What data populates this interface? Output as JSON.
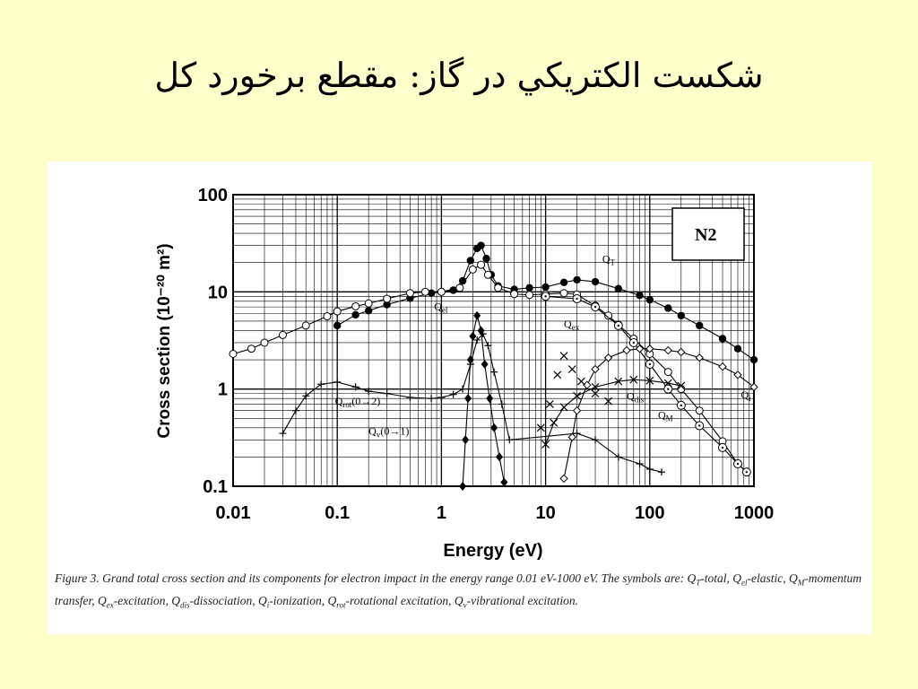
{
  "slide": {
    "title": "شکست الکتریکي در گاز: مقطع برخورد کل"
  },
  "figure": {
    "caption_segments": [
      {
        "t": "Figure 3. Grand total cross section and its components for electron impact in the energy range 0.01 eV-1000 eV. The symbols are: "
      },
      {
        "t": "Q"
      },
      {
        "sub": "T"
      },
      {
        "t": "-total, Q"
      },
      {
        "sub": "el"
      },
      {
        "t": "-elastic, Q"
      },
      {
        "sub": "M"
      },
      {
        "t": "-momentum transfer, Q"
      },
      {
        "sub": "ex"
      },
      {
        "t": "-excitation, Q"
      },
      {
        "sub": "dis"
      },
      {
        "t": "-dissociation, Q"
      },
      {
        "sub": "i"
      },
      {
        "t": "-ionization, Q"
      },
      {
        "sub": "rot"
      },
      {
        "t": "-rotational excitation, Q"
      },
      {
        "sub": "v"
      },
      {
        "t": "-vibrational excitation."
      }
    ]
  },
  "chart_data": {
    "type": "scatter",
    "gas_label": "N2",
    "xlabel": "Energy (eV)",
    "ylabel": "Cross section (10⁻²⁰ m²)",
    "xscale": "log",
    "yscale": "log",
    "xlim": [
      0.01,
      1000
    ],
    "ylim": [
      0.1,
      100
    ],
    "x_ticks": [
      "0.01",
      "0.1",
      "1",
      "10",
      "100",
      "1000"
    ],
    "y_ticks": [
      "0.1",
      "1",
      "10",
      "100"
    ],
    "grid": true,
    "series": [
      {
        "name": "QT",
        "marker": "filled-circle",
        "points": [
          [
            0.1,
            4.5
          ],
          [
            0.15,
            5.8
          ],
          [
            0.2,
            6.4
          ],
          [
            0.3,
            7.4
          ],
          [
            0.5,
            8.6
          ],
          [
            0.8,
            9.7
          ],
          [
            1,
            10
          ],
          [
            1.3,
            10.4
          ],
          [
            1.6,
            13
          ],
          [
            1.9,
            21
          ],
          [
            2.2,
            28
          ],
          [
            2.4,
            30
          ],
          [
            2.7,
            22
          ],
          [
            3,
            15
          ],
          [
            3.5,
            11.5
          ],
          [
            5,
            10.6
          ],
          [
            7,
            11
          ],
          [
            10,
            11.2
          ],
          [
            15,
            12.5
          ],
          [
            20,
            13.3
          ],
          [
            30,
            12.7
          ],
          [
            50,
            10.8
          ],
          [
            80,
            9.2
          ],
          [
            100,
            8.3
          ],
          [
            150,
            6.8
          ],
          [
            200,
            5.7
          ],
          [
            300,
            4.5
          ],
          [
            500,
            3.3
          ],
          [
            700,
            2.6
          ],
          [
            1000,
            2
          ]
        ]
      },
      {
        "name": "Qel",
        "marker": "open-circle",
        "points": [
          [
            0.01,
            2.3
          ],
          [
            0.015,
            2.6
          ],
          [
            0.02,
            3
          ],
          [
            0.03,
            3.6
          ],
          [
            0.05,
            4.5
          ],
          [
            0.08,
            5.6
          ],
          [
            0.1,
            6.3
          ],
          [
            0.15,
            7.1
          ],
          [
            0.2,
            7.6
          ],
          [
            0.3,
            8.5
          ],
          [
            0.5,
            9.7
          ],
          [
            0.7,
            10
          ],
          [
            1,
            10
          ],
          [
            1.5,
            11
          ],
          [
            2,
            17
          ],
          [
            2.4,
            19
          ],
          [
            2.8,
            15
          ],
          [
            3.5,
            11
          ],
          [
            5,
            9.5
          ],
          [
            7,
            9.3
          ],
          [
            10,
            9.5
          ],
          [
            15,
            9.7
          ],
          [
            20,
            9.4
          ],
          [
            30,
            7.2
          ],
          [
            40,
            5.7
          ],
          [
            50,
            4.6
          ],
          [
            70,
            3.3
          ],
          [
            100,
            2.3
          ],
          [
            150,
            1.5
          ],
          [
            200,
            1
          ],
          [
            300,
            0.6
          ],
          [
            500,
            0.29
          ],
          [
            700,
            0.17
          ],
          [
            850,
            0.14
          ]
        ]
      },
      {
        "name": "QM",
        "marker": "open-circle-dot",
        "points": [
          [
            10,
            9
          ],
          [
            20,
            8.5
          ],
          [
            30,
            7
          ],
          [
            50,
            4.5
          ],
          [
            70,
            3
          ],
          [
            100,
            1.8
          ],
          [
            150,
            1
          ],
          [
            200,
            0.68
          ],
          [
            300,
            0.42
          ],
          [
            500,
            0.25
          ],
          [
            700,
            0.17
          ],
          [
            850,
            0.14
          ]
        ]
      },
      {
        "name": "Qi",
        "marker": "diamond",
        "points": [
          [
            15,
            0.12
          ],
          [
            18,
            0.32
          ],
          [
            20,
            0.6
          ],
          [
            25,
            1.1
          ],
          [
            30,
            1.6
          ],
          [
            40,
            2.1
          ],
          [
            60,
            2.5
          ],
          [
            80,
            2.6
          ],
          [
            100,
            2.6
          ],
          [
            150,
            2.5
          ],
          [
            200,
            2.4
          ],
          [
            300,
            2.1
          ],
          [
            500,
            1.7
          ],
          [
            700,
            1.4
          ],
          [
            1000,
            1.05
          ]
        ]
      },
      {
        "name": "Qdis",
        "marker": "x",
        "points": [
          [
            10,
            0.27
          ],
          [
            12,
            0.45
          ],
          [
            15,
            0.65
          ],
          [
            20,
            0.85
          ],
          [
            30,
            1.05
          ],
          [
            50,
            1.2
          ],
          [
            70,
            1.25
          ],
          [
            100,
            1.22
          ],
          [
            150,
            1.15
          ],
          [
            200,
            1.08
          ]
        ]
      },
      {
        "name": "Qex",
        "marker": "x",
        "points": [
          [
            9,
            0.4
          ],
          [
            11,
            0.7
          ],
          [
            13,
            1.4
          ],
          [
            15,
            2.2
          ],
          [
            18,
            1.6
          ],
          [
            22,
            1.2
          ],
          [
            30,
            0.9
          ],
          [
            40,
            0.75
          ]
        ]
      },
      {
        "name": "Qrot(0→2)",
        "marker": "plus",
        "points": [
          [
            0.03,
            0.35
          ],
          [
            0.04,
            0.6
          ],
          [
            0.05,
            0.85
          ],
          [
            0.07,
            1.12
          ],
          [
            0.1,
            1.18
          ],
          [
            0.15,
            1.05
          ],
          [
            0.2,
            0.95
          ],
          [
            0.3,
            0.9
          ],
          [
            0.5,
            0.82
          ],
          [
            0.8,
            0.8
          ],
          [
            1,
            0.82
          ],
          [
            1.3,
            0.88
          ],
          [
            1.6,
            1
          ],
          [
            1.9,
            1.8
          ],
          [
            2.2,
            3.2
          ],
          [
            2.5,
            3.7
          ],
          [
            2.8,
            2.8
          ],
          [
            3.2,
            1.5
          ],
          [
            3.8,
            0.7
          ],
          [
            4.5,
            0.3
          ],
          [
            20,
            0.35
          ],
          [
            30,
            0.3
          ],
          [
            50,
            0.2
          ],
          [
            80,
            0.17
          ],
          [
            100,
            0.15
          ],
          [
            130,
            0.14
          ]
        ]
      },
      {
        "name": "Qv(0→1)",
        "marker": "filled-diamond",
        "points": [
          [
            1.6,
            0.1
          ],
          [
            1.7,
            0.3
          ],
          [
            1.8,
            0.8
          ],
          [
            1.9,
            2
          ],
          [
            2,
            3.5
          ],
          [
            2.2,
            5.7
          ],
          [
            2.4,
            4
          ],
          [
            2.6,
            1.8
          ],
          [
            2.9,
            0.8
          ],
          [
            3.2,
            0.4
          ],
          [
            3.6,
            0.2
          ],
          [
            4,
            0.11
          ]
        ]
      }
    ],
    "labels": [
      {
        "text": "Q",
        "sub": "T",
        "x": 35,
        "y": 20
      },
      {
        "text": "Q",
        "sub": "el",
        "x": 0.85,
        "y": 6.5
      },
      {
        "text": "Q",
        "sub": "ex",
        "x": 15,
        "y": 4.3
      },
      {
        "text": "Q",
        "sub": "dis",
        "x": 60,
        "y": 0.78
      },
      {
        "text": "Q",
        "sub": "M",
        "x": 120,
        "y": 0.5
      },
      {
        "text": "Q",
        "sub": "i",
        "x": 750,
        "y": 0.8
      },
      {
        "text": "Q",
        "sub": "rot",
        "extra": "(0→2)",
        "x": 0.095,
        "y": 0.69
      },
      {
        "text": "Q",
        "sub": "v",
        "extra": "(0→1)",
        "x": 0.2,
        "y": 0.34
      }
    ]
  }
}
